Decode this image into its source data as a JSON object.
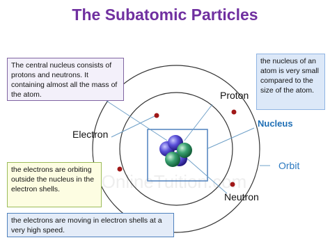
{
  "header": {
    "title": "The Subatomic Particles"
  },
  "boxes": [
    {
      "text": "The central nucleus consists of protons and neutrons. It containing almost all the mass of the atom."
    },
    {
      "text": "the nucleus of an atom is very small compared to the size of the atom."
    },
    {
      "text": "the electrons are orbiting outside the nucleus in the electron shells."
    },
    {
      "text": "the electrons are moving in electron shells at a very high speed."
    }
  ],
  "labels": {
    "proton": "Proton",
    "nucleus": "Nucleus",
    "orbit": "Orbit",
    "electron": "Electron",
    "neutron": "Neutron"
  },
  "watermark": "OnlineTuition.com"
}
